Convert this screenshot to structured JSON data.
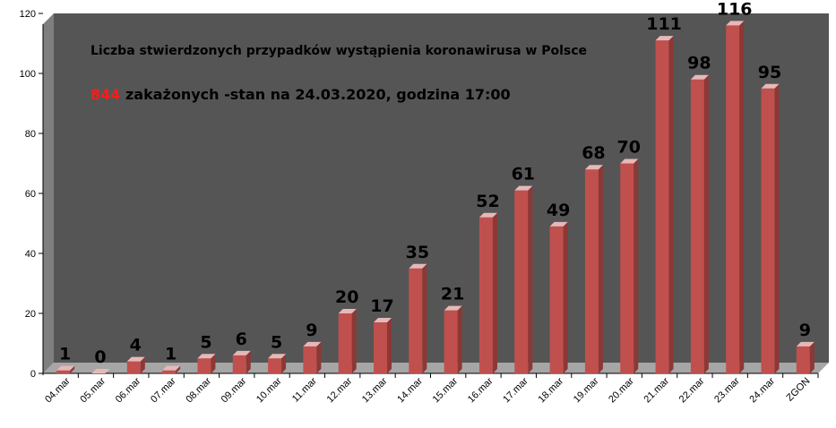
{
  "chart_data": {
    "type": "bar",
    "title": "Liczba stwierdzonych przypadków wystąpienia koronawirusa w Polsce",
    "subtitle": {
      "count": "844",
      "text": " zakażonych  -stan  na 24.03.2020, godzina  17:00"
    },
    "categories": [
      "04.mar",
      "05.mar",
      "06.mar",
      "07.mar",
      "08.mar",
      "09.mar",
      "10.mar",
      "11.mar",
      "12.mar",
      "13.mar",
      "14.mar",
      "15.mar",
      "16.mar",
      "17.mar",
      "18.mar",
      "19.mar",
      "20.mar",
      "21.mar",
      "22.mar",
      "23.mar",
      "24.mar",
      "ZGON"
    ],
    "values": [
      1,
      0,
      4,
      1,
      5,
      6,
      5,
      9,
      20,
      17,
      35,
      21,
      52,
      61,
      49,
      68,
      70,
      111,
      98,
      116,
      95,
      9
    ],
    "ylim": [
      0,
      120
    ],
    "yticks": [
      0,
      20,
      40,
      60,
      80,
      100,
      120
    ],
    "xlabel": "",
    "ylabel": "",
    "grid": false,
    "legend": "none",
    "colors": {
      "plot_background": "#555555",
      "floor": "#a6a6a6",
      "wall_side": "#7f7f7f",
      "bar_front": "#c0504d",
      "bar_top": "#e6b9b8",
      "bar_side": "#8c3836",
      "subtitle_accent": "#ff1a1a"
    }
  }
}
